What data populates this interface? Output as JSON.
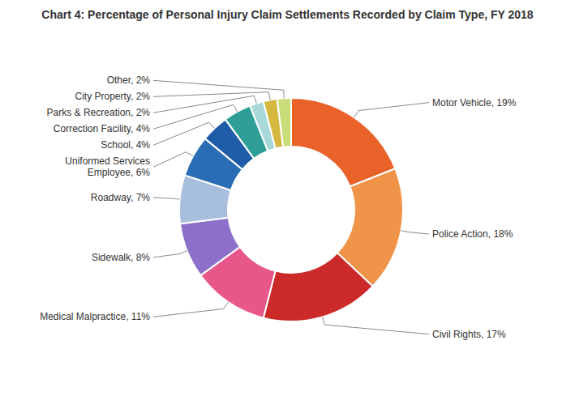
{
  "chart_data": {
    "type": "pie",
    "title": "Chart 4: Percentage of Personal Injury Claim Settlements Recorded by Claim Type, FY 2018",
    "categories": [
      "Motor Vehicle",
      "Police Action",
      "Civil Rights",
      "Medical Malpractice",
      "Sidewalk",
      "Roadway",
      "Uniformed Services\nEmployee",
      "School",
      "Correction Facility",
      "Parks & Recreation",
      "City Property",
      "Other"
    ],
    "values": [
      19,
      18,
      17,
      11,
      8,
      7,
      6,
      4,
      4,
      2,
      2,
      2
    ],
    "value_labels": [
      "Motor Vehicle, 19%",
      "Police Action, 18%",
      "Civil Rights, 17%",
      "Medical Malpractice, 11%",
      "Sidewalk, 8%",
      "Roadway, 7%",
      "Uniformed Services\nEmployee, 6%",
      "School, 4%",
      "Correction Facility, 4%",
      "Parks & Recreation, 2%",
      "City Property, 2%",
      "Other, 2%"
    ],
    "colors": [
      "#E8622A",
      "#F0944A",
      "#CC2929",
      "#E8578A",
      "#8B6FC8",
      "#A8BEDD",
      "#2B6DB5",
      "#1E5CA8",
      "#2E9E96",
      "#A8D8D8",
      "#D4B840",
      "#C8DC78"
    ],
    "data_labels": true
  }
}
